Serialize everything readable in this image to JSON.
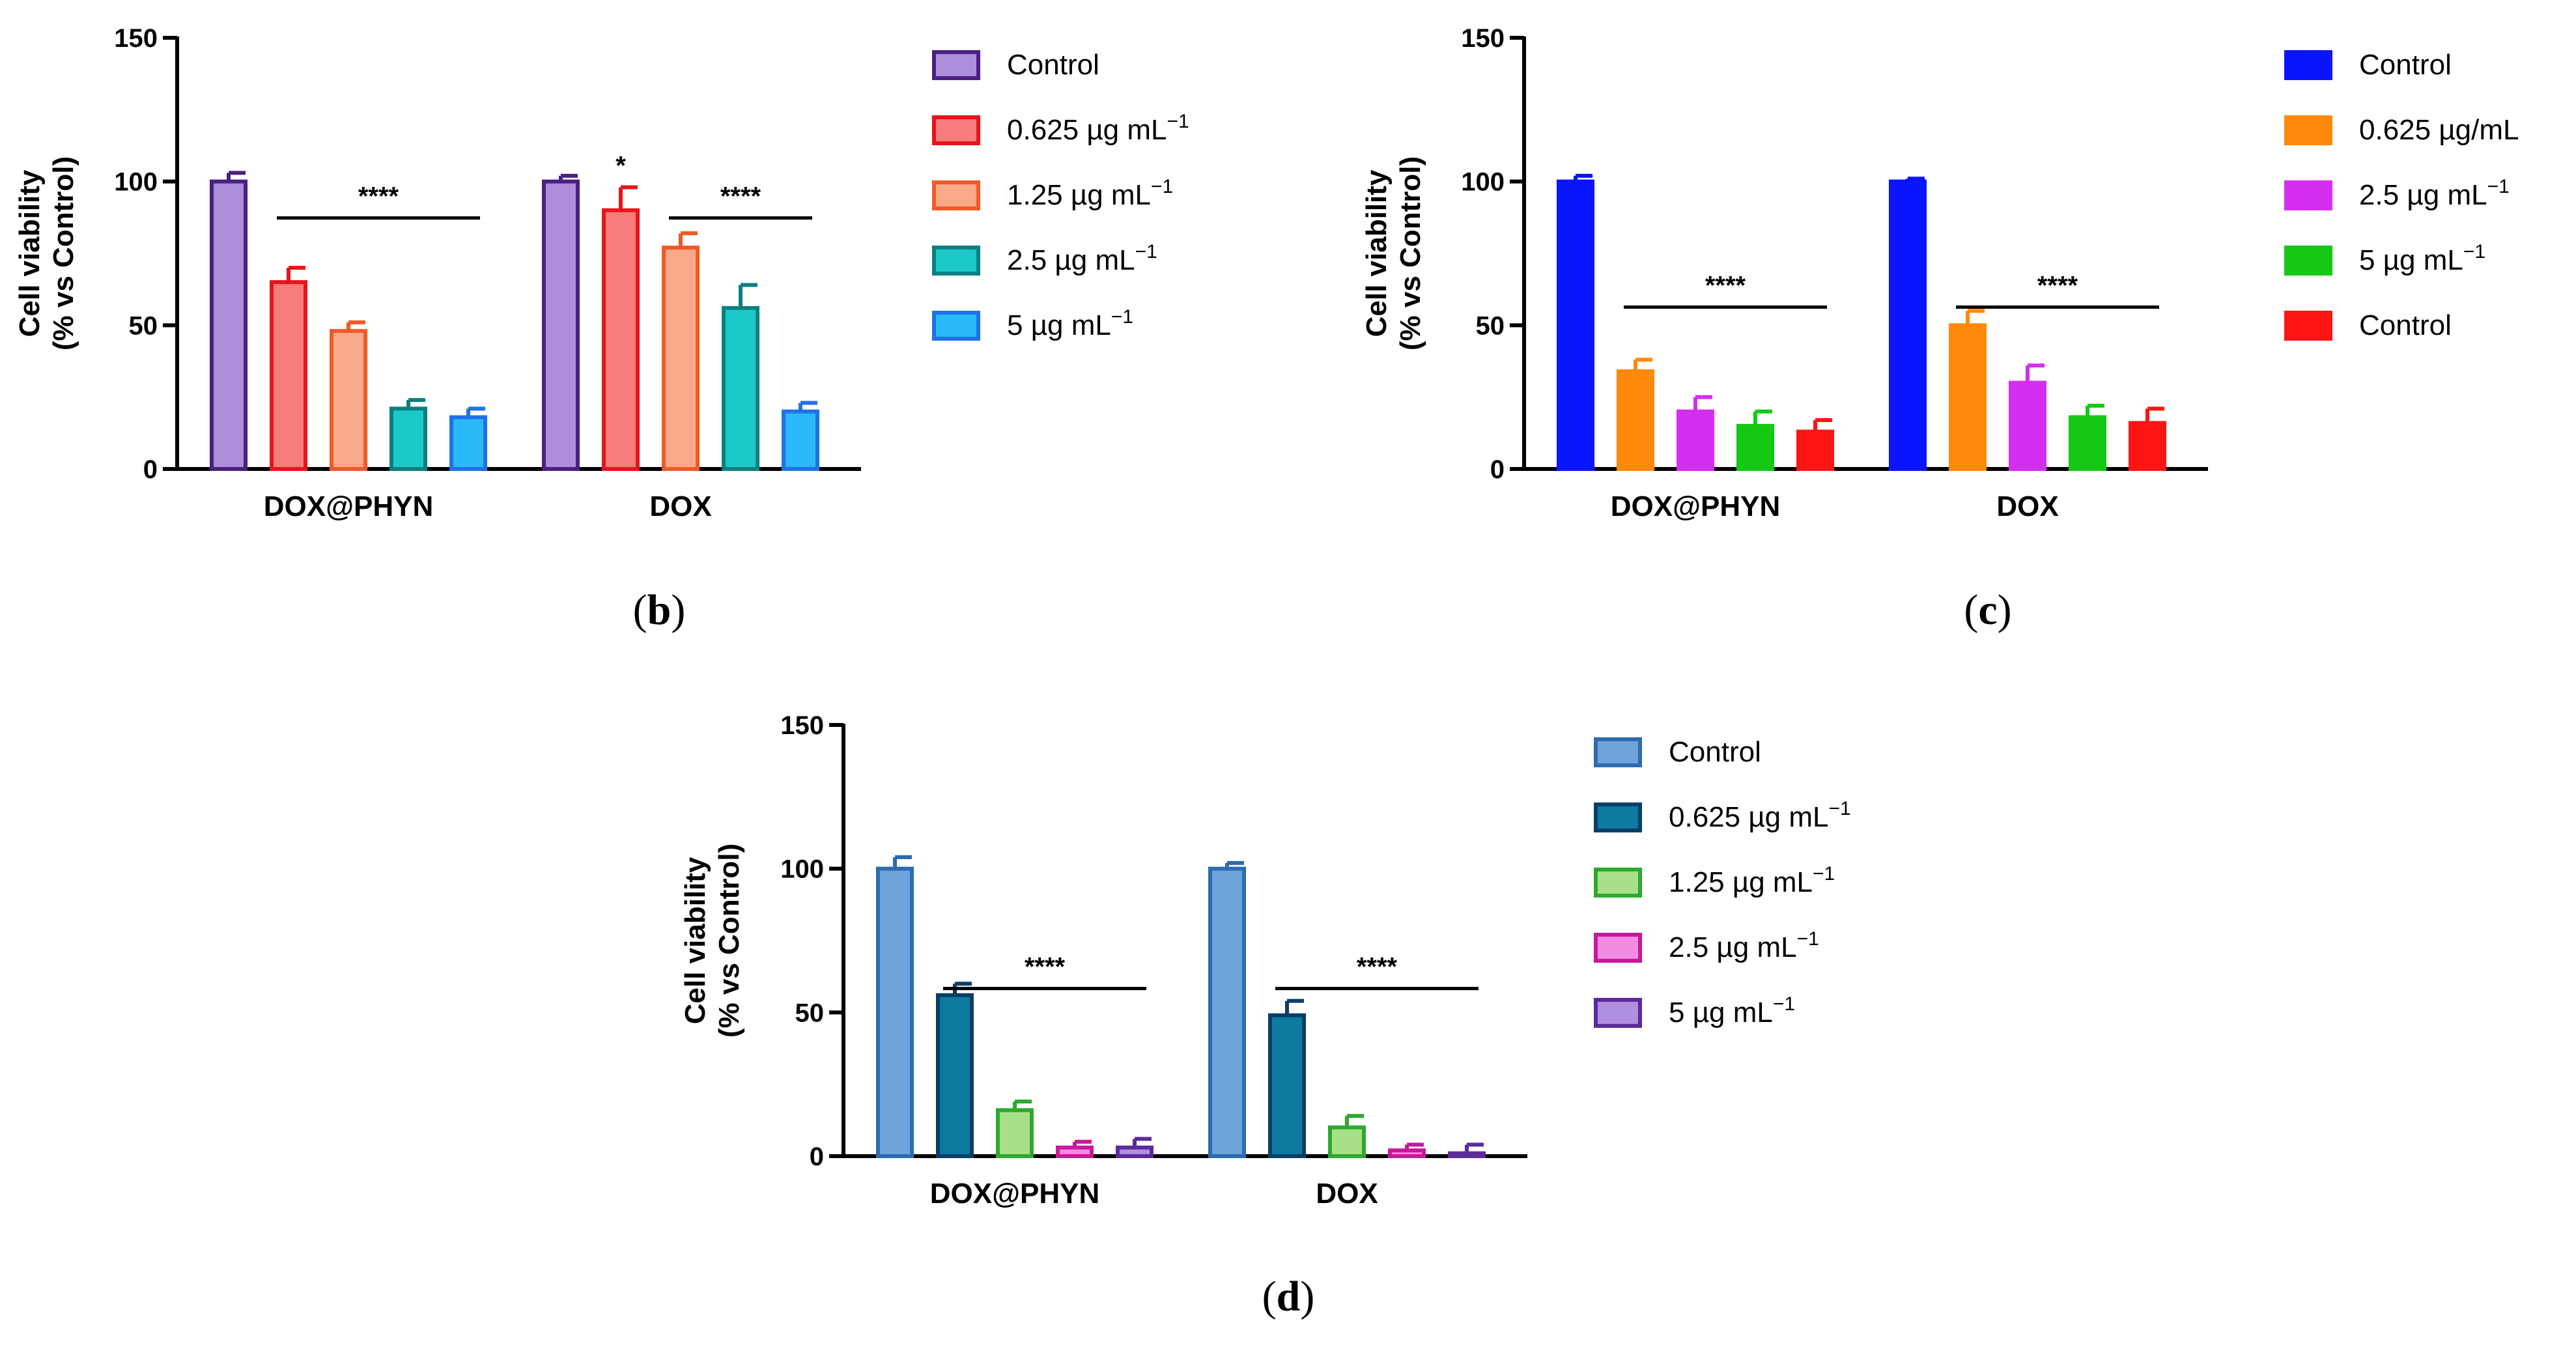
{
  "chart_data": [
    {
      "type": "bar",
      "panel_label": "(b)",
      "panel_label_parts": [
        "(",
        "b",
        ")"
      ],
      "ylabel_lines": [
        "Cell viability",
        "(% vs Control)"
      ],
      "ylim": [
        0,
        150
      ],
      "yticks": [
        0,
        50,
        100,
        150
      ],
      "categories": [
        "DOX@PHYN",
        "DOX"
      ],
      "legend_position": "right",
      "series": [
        {
          "name": "Control",
          "legend_parts": [
            "Control"
          ],
          "fill": "#ae8ddc",
          "stroke": "#4a2080",
          "values": [
            100,
            100
          ],
          "errors": [
            3,
            2
          ]
        },
        {
          "name": "0.625 µg mL⁻¹",
          "legend_parts": [
            "0.625 µg mL",
            "−1"
          ],
          "fill": "#f77c7c",
          "stroke": "#e8141c",
          "values": [
            65,
            90
          ],
          "errors": [
            5,
            8
          ]
        },
        {
          "name": "1.25 µg mL⁻¹",
          "legend_parts": [
            "1.25 µg mL",
            "−1"
          ],
          "fill": "#f9a98a",
          "stroke": "#f05a28",
          "values": [
            48,
            77
          ],
          "errors": [
            3,
            5
          ]
        },
        {
          "name": "2.5 µg mL⁻¹",
          "legend_parts": [
            "2.5 µg mL",
            "−1"
          ],
          "fill": "#1cc9c9",
          "stroke": "#0a8080",
          "values": [
            21,
            56
          ],
          "errors": [
            3,
            8
          ]
        },
        {
          "name": "5 µg mL⁻¹",
          "legend_parts": [
            "5 µg mL",
            "−1"
          ],
          "fill": "#29b9f8",
          "stroke": "#1f72e6",
          "values": [
            18,
            20
          ],
          "errors": [
            3,
            3
          ]
        }
      ],
      "annotations": [
        {
          "text": "****",
          "category": 0,
          "from_series": 1,
          "to_series": 4,
          "y": 100
        },
        {
          "text": "****",
          "category": 1,
          "from_series": 2,
          "to_series": 4,
          "y": 100
        },
        {
          "text": "*",
          "category": 1,
          "series": 1,
          "y": 100
        }
      ]
    },
    {
      "type": "bar",
      "panel_label": "(c)",
      "panel_label_parts": [
        "(",
        "c",
        ")"
      ],
      "ylabel_lines": [
        "Cell viability",
        "(% vs Control)"
      ],
      "ylim": [
        0,
        150
      ],
      "yticks": [
        0,
        50,
        100,
        150
      ],
      "categories": [
        "DOX@PHYN",
        "DOX"
      ],
      "legend_position": "right",
      "series": [
        {
          "name": "Control",
          "legend_parts": [
            "Control"
          ],
          "fill": "#0a14ff",
          "stroke": "#0a14ff",
          "values": [
            100,
            100
          ],
          "errors": [
            2,
            1
          ]
        },
        {
          "name": "0.625 µg/mL",
          "legend_parts": [
            "0.625 µg/mL"
          ],
          "fill": "#ff8a0a",
          "stroke": "#ff8a0a",
          "values": [
            34,
            50
          ],
          "errors": [
            4,
            5
          ]
        },
        {
          "name": "2.5 µg mL⁻¹",
          "legend_parts": [
            "2.5 µg mL",
            "−1"
          ],
          "fill": "#d42ef0",
          "stroke": "#d42ef0",
          "values": [
            20,
            30
          ],
          "errors": [
            5,
            6
          ]
        },
        {
          "name": "5 µg mL⁻¹",
          "legend_parts": [
            "5 µg mL",
            "−1"
          ],
          "fill": "#14c814",
          "stroke": "#14c814",
          "values": [
            15,
            18
          ],
          "errors": [
            5,
            4
          ]
        },
        {
          "name": "Control",
          "legend_parts": [
            "Control"
          ],
          "fill": "#ff1414",
          "stroke": "#ff1414",
          "values": [
            13,
            16
          ],
          "errors": [
            4,
            5
          ]
        }
      ],
      "annotations": [
        {
          "text": "****",
          "category": 0,
          "from_series": 1,
          "to_series": 4,
          "y": 69
        },
        {
          "text": "****",
          "category": 1,
          "from_series": 1,
          "to_series": 4,
          "y": 69
        }
      ]
    },
    {
      "type": "bar",
      "panel_label": "(d)",
      "panel_label_parts": [
        "(",
        "d",
        ")"
      ],
      "ylabel_lines": [
        "Cell viability",
        "(% vs Control)"
      ],
      "ylim": [
        0,
        150
      ],
      "yticks": [
        0,
        50,
        100,
        150
      ],
      "categories": [
        "DOX@PHYN",
        "DOX"
      ],
      "legend_position": "right",
      "series": [
        {
          "name": "Control",
          "legend_parts": [
            "Control"
          ],
          "fill": "#6fa4da",
          "stroke": "#2c6cb0",
          "values": [
            100,
            100
          ],
          "errors": [
            4,
            2
          ]
        },
        {
          "name": "0.625 µg mL⁻¹",
          "legend_parts": [
            "0.625 µg mL",
            "−1"
          ],
          "fill": "#0d7aa0",
          "stroke": "#0a3e66",
          "values": [
            56,
            49
          ],
          "errors": [
            4,
            5
          ]
        },
        {
          "name": "1.25 µg mL⁻¹",
          "legend_parts": [
            "1.25 µg mL",
            "−1"
          ],
          "fill": "#a8e08a",
          "stroke": "#2ea82e",
          "values": [
            16,
            10
          ],
          "errors": [
            3,
            4
          ]
        },
        {
          "name": "2.5 µg mL⁻¹",
          "legend_parts": [
            "2.5 µg mL",
            "−1"
          ],
          "fill": "#f28ce0",
          "stroke": "#c8189c",
          "values": [
            3,
            2
          ],
          "errors": [
            2,
            2
          ]
        },
        {
          "name": "5 µg mL⁻¹",
          "legend_parts": [
            "5 µg mL",
            "−1"
          ],
          "fill": "#b08ee0",
          "stroke": "#5c2a9a",
          "values": [
            3,
            1
          ],
          "errors": [
            3,
            3
          ]
        }
      ],
      "annotations": [
        {
          "text": "****",
          "category": 0,
          "from_series": 1,
          "to_series": 4,
          "y": 71
        },
        {
          "text": "****",
          "category": 1,
          "from_series": 1,
          "to_series": 4,
          "y": 71
        }
      ]
    }
  ]
}
